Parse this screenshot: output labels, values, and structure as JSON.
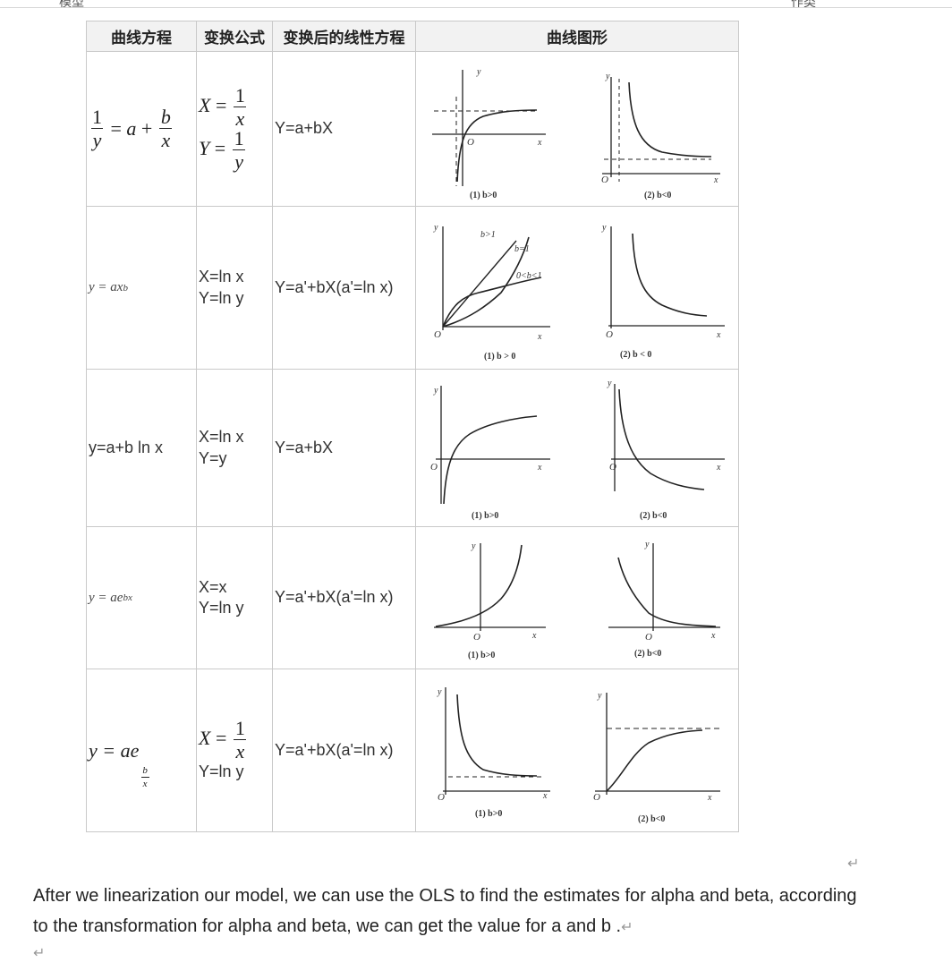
{
  "top_cut": {
    "left": "模型",
    "right": "作类"
  },
  "table": {
    "headers": [
      "曲线方程",
      "变换公式",
      "变换后的线性方程",
      "曲线图形"
    ],
    "rows": [
      {
        "transform_math": {
          "X_num": "1",
          "X_den": "x",
          "Y_num": "1",
          "Y_den": "y"
        },
        "linear": "Y=a+bX",
        "captions": [
          "(1) b>0",
          "(2) b<0"
        ]
      },
      {
        "equation": "y = ax",
        "equation_sup": "b",
        "transform": [
          "X=ln x",
          "Y=ln y"
        ],
        "linear": "Y=a'+bX(a'=ln x)",
        "captions": [
          "(1) b > 0",
          "(2) b < 0"
        ],
        "plot_labels": [
          "b>1",
          "b=1",
          "0<b<1"
        ]
      },
      {
        "equation": "y=a+b ln x",
        "transform": [
          "X=ln x",
          "Y=y"
        ],
        "linear": "Y=a+bX",
        "captions": [
          "(1) b>0",
          "(2) b<0"
        ]
      },
      {
        "equation": "y = ae",
        "equation_sup": "bx",
        "transform": [
          "X=x",
          "Y=ln y"
        ],
        "linear": "Y=a'+bX(a'=ln x)",
        "captions": [
          "(1) b>0",
          "(2) b<0"
        ]
      },
      {
        "equation_math": {
          "lhs": "y = ae",
          "exp_num": "b",
          "exp_den": "x"
        },
        "transform_math": {
          "X_num": "1",
          "X_den": "x"
        },
        "transform_y": "Y=ln y",
        "linear": "Y=a'+bX(a'=ln x)",
        "captions": [
          "(1) b>0",
          "(2) b<0"
        ]
      }
    ]
  },
  "paragraph": "After we linearization our model, we can use the OLS to find the estimates for alpha and beta, according to the transformation for alpha and beta, we can get the value for a and b .",
  "paragraph_mark": "↵",
  "mark_top": "↵",
  "mark_bottom": "↵",
  "axis_labels": {
    "x": "x",
    "y": "y",
    "origin": "O"
  }
}
